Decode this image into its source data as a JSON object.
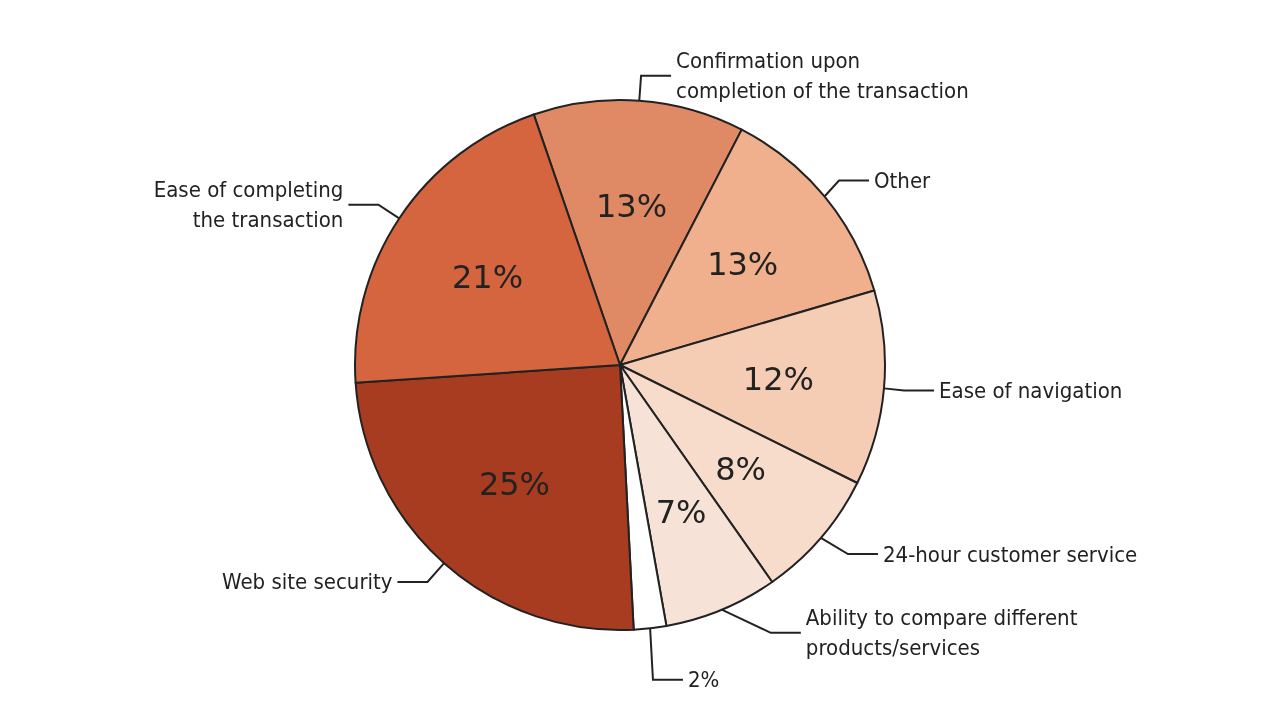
{
  "chart_data": {
    "type": "pie",
    "categories": [
      "Confirmation upon completion of the transaction",
      "Other",
      "Ease of navigation",
      "24-hour customer service",
      "Ability to compare different products/services",
      null,
      "Web site security",
      "Ease of completing the transaction"
    ],
    "values": [
      13,
      13,
      12,
      8,
      7,
      2,
      25,
      21
    ],
    "value_labels": [
      "13%",
      "13%",
      "12%",
      "8%",
      "7%",
      "2%",
      "25%",
      "21%"
    ],
    "colors": [
      "#e08a65",
      "#f0b08e",
      "#f5cdb5",
      "#f8dccb",
      "#f6e2d6",
      "#ffffff",
      "#a83c20",
      "#d4653f"
    ],
    "legend": false
  }
}
